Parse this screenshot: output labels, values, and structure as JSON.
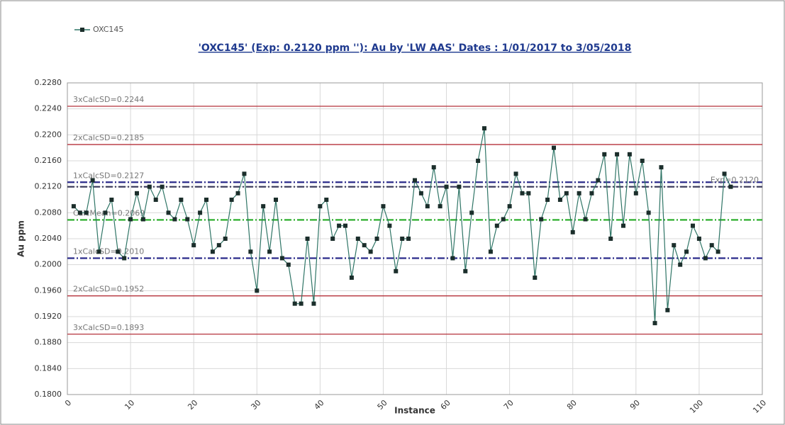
{
  "chart_data": {
    "type": "line",
    "title": "'OXC145' (Exp: 0.2120 ppm ''): Au by 'LW AAS' Dates : 1/01/2017 to 3/05/2018",
    "x_label": "Instance",
    "y_label": "Au ppm",
    "legend": "top-left",
    "grid": true,
    "x": [
      1,
      2,
      3,
      4,
      5,
      6,
      7,
      8,
      9,
      10,
      11,
      12,
      13,
      14,
      15,
      16,
      17,
      18,
      19,
      20,
      21,
      22,
      23,
      24,
      25,
      26,
      27,
      28,
      29,
      30,
      31,
      32,
      33,
      34,
      35,
      36,
      37,
      38,
      39,
      40,
      41,
      42,
      43,
      44,
      45,
      46,
      47,
      48,
      49,
      50,
      51,
      52,
      53,
      54,
      55,
      56,
      57,
      58,
      59,
      60,
      61,
      62,
      63,
      64,
      65,
      66,
      67,
      68,
      69,
      70,
      71,
      72,
      73,
      74,
      75,
      76,
      77,
      78,
      79,
      80,
      81,
      82,
      83,
      84,
      85,
      86,
      87,
      88,
      89,
      90,
      91,
      92,
      93,
      94,
      95,
      96,
      97,
      98,
      99,
      100,
      101,
      102,
      103,
      104,
      105
    ],
    "series": [
      {
        "name": "OXC145",
        "color": "#2f7566",
        "marker_color": "#1b2e2b",
        "values": [
          0.209,
          0.208,
          0.208,
          0.213,
          0.202,
          0.208,
          0.21,
          0.202,
          0.201,
          0.207,
          0.211,
          0.207,
          0.212,
          0.21,
          0.212,
          0.208,
          0.207,
          0.21,
          0.207,
          0.203,
          0.208,
          0.21,
          0.202,
          0.203,
          0.204,
          0.21,
          0.211,
          0.214,
          0.202,
          0.196,
          0.209,
          0.202,
          0.21,
          0.201,
          0.2,
          0.194,
          0.194,
          0.204,
          0.194,
          0.209,
          0.21,
          0.204,
          0.206,
          0.206,
          0.198,
          0.204,
          0.203,
          0.202,
          0.204,
          0.209,
          0.206,
          0.199,
          0.204,
          0.204,
          0.213,
          0.211,
          0.209,
          0.215,
          0.209,
          0.212,
          0.201,
          0.212,
          0.199,
          0.208,
          0.216,
          0.221,
          0.202,
          0.206,
          0.207,
          0.209,
          0.214,
          0.211,
          0.211,
          0.198,
          0.207,
          0.21,
          0.218,
          0.21,
          0.211,
          0.205,
          0.211,
          0.207,
          0.211,
          0.213,
          0.217,
          0.204,
          0.217,
          0.206,
          0.217,
          0.211,
          0.216,
          0.208,
          0.191,
          0.215,
          0.193,
          0.203,
          0.2,
          0.202,
          0.206,
          0.204,
          0.201,
          0.203,
          0.202,
          0.214,
          0.212
        ]
      }
    ],
    "reference_lines": [
      {
        "label": "3xCalcSD=0.2244",
        "value": 0.2244,
        "color": "#b5303a",
        "style": "solid",
        "label_side": "left"
      },
      {
        "label": "2xCalcSD=0.2185",
        "value": 0.2185,
        "color": "#b5303a",
        "style": "solid",
        "label_side": "left"
      },
      {
        "label": "1xCalcSD=0.2127",
        "value": 0.2127,
        "color": "#2a2a8a",
        "style": "dashdot",
        "label_side": "left"
      },
      {
        "label": "Exp=0.2120",
        "value": 0.212,
        "color": "#333355",
        "style": "dashdot",
        "label_side": "right"
      },
      {
        "label": "CalcMean=0.2069",
        "value": 0.2069,
        "color": "#22aa22",
        "style": "dashdot",
        "label_side": "left"
      },
      {
        "label": "1xCalcSD=0.2010",
        "value": 0.201,
        "color": "#2a2a8a",
        "style": "dashdot",
        "label_side": "left"
      },
      {
        "label": "2xCalcSD=0.1952",
        "value": 0.1952,
        "color": "#b5303a",
        "style": "solid",
        "label_side": "left"
      },
      {
        "label": "3xCalcSD=0.1893",
        "value": 0.1893,
        "color": "#b5303a",
        "style": "solid",
        "label_side": "left"
      }
    ],
    "xlim": [
      0,
      110
    ],
    "xticks": [
      0,
      10,
      20,
      30,
      40,
      50,
      60,
      70,
      80,
      90,
      100,
      110
    ],
    "ylim": [
      0.18,
      0.228
    ],
    "yticks": [
      {
        "value": 0.18,
        "label": "0.1800"
      },
      {
        "value": 0.184,
        "label": "0.1840"
      },
      {
        "value": 0.188,
        "label": "0.1880"
      },
      {
        "value": 0.192,
        "label": "0.1920"
      },
      {
        "value": 0.196,
        "label": "0.1960"
      },
      {
        "value": 0.2,
        "label": "0.2000"
      },
      {
        "value": 0.204,
        "label": "0.2040"
      },
      {
        "value": 0.208,
        "label": "0.2080"
      },
      {
        "value": 0.212,
        "label": "0.2120"
      },
      {
        "value": 0.216,
        "label": "0.2160"
      },
      {
        "value": 0.22,
        "label": "0.2200"
      },
      {
        "value": 0.224,
        "label": "0.2240"
      },
      {
        "value": 0.228,
        "label": "0.2280"
      }
    ]
  }
}
